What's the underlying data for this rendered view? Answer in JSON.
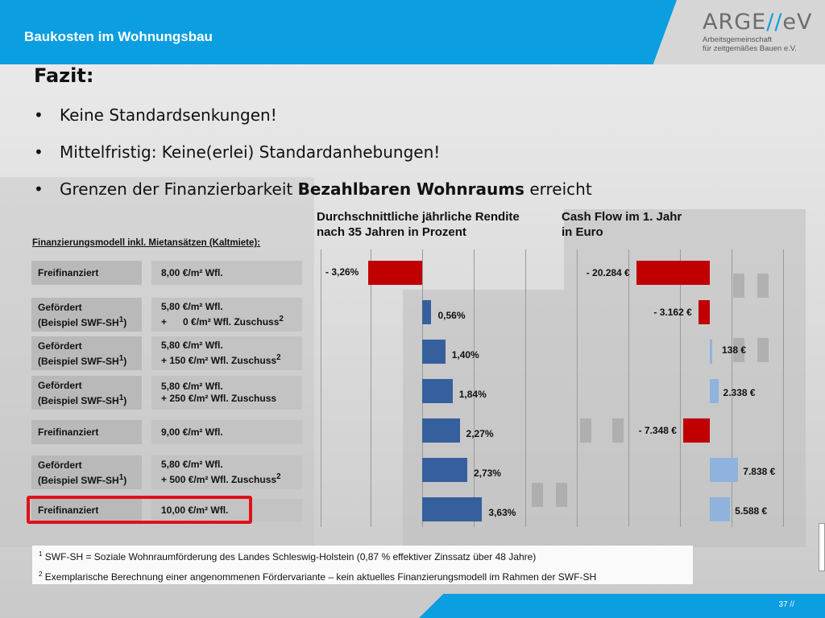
{
  "header": {
    "title": "Baukosten im Wohnungsbau"
  },
  "logo": {
    "main_left": "ARGE",
    "main_slash": "//",
    "main_right": "eV",
    "sub1": "Arbeitsgemeinschaft",
    "sub2": "für zeitgemäßes Bauen e.V."
  },
  "heading": "Fazit:",
  "bullets": [
    {
      "text": "Keine Standardsenkungen!"
    },
    {
      "text": "Mittelfristig: Keine(erlei) Standardanhebungen!"
    },
    {
      "pre": "Grenzen der Finanzierbarkeit ",
      "bold": "Bezahlbaren Wohnraums",
      "post": " erreicht"
    }
  ],
  "table_title": "Finanzierungsmodell inkl. Mietansätzen (Kaltmiete):",
  "col_rendite": {
    "line1": "Durchschnittliche jährliche Rendite",
    "line2": "nach 35 Jahren in Prozent"
  },
  "col_cashflow": {
    "line1": "Cash Flow im 1. Jahr",
    "line2": "in Euro"
  },
  "rows": [
    {
      "label1": "Freifinanziert",
      "label2": "",
      "value1": "8,00 €/m² Wfl.",
      "value2": ""
    },
    {
      "label1": "Gefördert",
      "label2": "(Beispiel SWF-SH1)",
      "value1": "5,80 €/m² Wfl.",
      "value2": "+      0 €/m² Wfl. Zuschuss2"
    },
    {
      "label1": "Gefördert",
      "label2": "(Beispiel SWF-SH1)",
      "value1": "5,80 €/m² Wfl.",
      "value2": "+ 150 €/m² Wfl. Zuschuss2"
    },
    {
      "label1": "Gefördert",
      "label2": "(Beispiel SWF-SH1)",
      "value1": "5,80 €/m² Wfl.",
      "value2": "+ 250 €/m² Wfl. Zuschuss"
    },
    {
      "label1": "Freifinanziert",
      "label2": "",
      "value1": "9,00 €/m² Wfl.",
      "value2": ""
    },
    {
      "label1": "Gefördert",
      "label2": "(Beispiel SWF-SH1)",
      "value1": "5,80 €/m² Wfl.",
      "value2": "+ 500 €/m² Wfl. Zuschuss2"
    },
    {
      "label1": "Freifinanziert",
      "label2": "",
      "value1": "10,00 €/m² Wfl.",
      "value2": ""
    }
  ],
  "chart_data": [
    {
      "type": "bar",
      "title": "Durchschnittliche jährliche Rendite nach 35 Jahren in Prozent",
      "values": [
        -3.26,
        0.56,
        1.4,
        1.84,
        2.27,
        2.73,
        3.63
      ],
      "labels": [
        "- 3,26%",
        "0,56%",
        "1,40%",
        "1,84%",
        "2,27%",
        "2,73%",
        "3,63%"
      ],
      "colors": {
        "negative": "#c00000",
        "positive": "#365f9d"
      }
    },
    {
      "type": "bar",
      "title": "Cash Flow im 1. Jahr in Euro",
      "values": [
        -20284,
        -3162,
        138,
        2338,
        -7348,
        7838,
        5588
      ],
      "labels": [
        "- 20.284 €",
        "- 3.162 €",
        "138 €",
        "2.338 €",
        "- 7.348 €",
        "7.838 €",
        "5.588 €"
      ],
      "colors": {
        "negative": "#c00000",
        "positive": "#8fb3dc"
      }
    }
  ],
  "footnotes": {
    "f1_num": "1",
    "f1": "SWF-SH = Soziale Wohnraumförderung  des Landes Schleswig-Holstein (0,87 % effektiver  Zinssatz über 48 Jahre)",
    "f2_num": "2",
    "f2": "Exemplarische Berechnung einer angenommenen  Fördervariante  – kein aktuelles Finanzierungsmodell  im Rahmen der SWF-SH"
  },
  "page_number": "37 //"
}
